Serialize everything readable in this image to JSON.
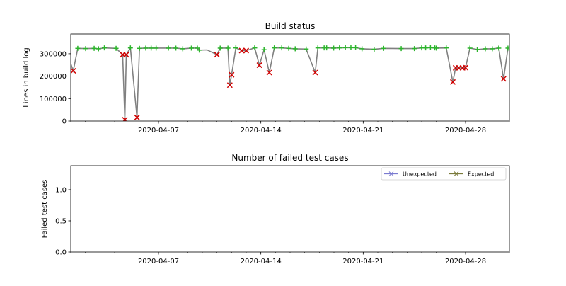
{
  "chart_data": [
    {
      "type": "line",
      "title": "Build status",
      "xlabel": "",
      "ylabel": "Lines in build log",
      "x_origin_date": "2020-04-01",
      "x_unit": "days since x_origin_date",
      "xlim": [
        0,
        30
      ],
      "ylim": [
        0,
        388000
      ],
      "xticks": [
        {
          "day": 6,
          "label": "2020-04-07"
        },
        {
          "day": 13,
          "label": "2020-04-14"
        },
        {
          "day": 20,
          "label": "2020-04-21"
        },
        {
          "day": 27,
          "label": "2020-04-28"
        }
      ],
      "yticks": [
        {
          "value": 0,
          "label": "0"
        },
        {
          "value": 100000,
          "label": "100000"
        },
        {
          "value": 200000,
          "label": "200000"
        },
        {
          "value": 300000,
          "label": "300000"
        }
      ],
      "colors": {
        "line": "#808080",
        "pass": "#2cb52c",
        "fail": "#d00000"
      },
      "points": [
        [
          -0.1,
          275000,
          "none"
        ],
        [
          0.17,
          224000,
          "fail"
        ],
        [
          0.48,
          324000,
          "pass"
        ],
        [
          1.02,
          323000,
          "pass"
        ],
        [
          1.6,
          324000,
          "pass"
        ],
        [
          1.9,
          322000,
          "pass"
        ],
        [
          2.3,
          326000,
          "pass"
        ],
        [
          3.1,
          324000,
          "pass"
        ],
        [
          3.55,
          296000,
          "fail"
        ],
        [
          3.7,
          6000,
          "fail"
        ],
        [
          3.8,
          296000,
          "fail"
        ],
        [
          4.08,
          326000,
          "pass"
        ],
        [
          4.53,
          16000,
          "fail"
        ],
        [
          4.7,
          324000,
          "pass"
        ],
        [
          5.13,
          325000,
          "pass"
        ],
        [
          5.5,
          325000,
          "pass"
        ],
        [
          5.84,
          325000,
          "pass"
        ],
        [
          6.68,
          325000,
          "pass"
        ],
        [
          7.19,
          325000,
          "pass"
        ],
        [
          7.66,
          322000,
          "pass"
        ],
        [
          8.25,
          325000,
          "pass"
        ],
        [
          8.66,
          325000,
          "pass"
        ],
        [
          8.79,
          316000,
          "pass"
        ],
        [
          9.33,
          317000,
          "none"
        ],
        [
          10.0,
          296000,
          "fail"
        ],
        [
          10.22,
          325000,
          "pass"
        ],
        [
          10.75,
          325000,
          "pass"
        ],
        [
          10.88,
          160000,
          "fail"
        ],
        [
          11.0,
          206000,
          "fail"
        ],
        [
          11.29,
          326000,
          "pass"
        ],
        [
          11.69,
          314000,
          "fail"
        ],
        [
          12.0,
          314000,
          "fail"
        ],
        [
          12.58,
          326000,
          "pass"
        ],
        [
          12.9,
          249000,
          "fail"
        ],
        [
          13.22,
          318000,
          "pass"
        ],
        [
          13.58,
          216000,
          "fail"
        ],
        [
          13.92,
          326000,
          "pass"
        ],
        [
          14.43,
          326000,
          "pass"
        ],
        [
          14.91,
          324000,
          "pass"
        ],
        [
          15.35,
          322000,
          "pass"
        ],
        [
          16.1,
          321000,
          "pass"
        ],
        [
          16.72,
          216000,
          "fail"
        ],
        [
          16.9,
          326000,
          "pass"
        ],
        [
          17.33,
          326000,
          "pass"
        ],
        [
          17.5,
          326000,
          "pass"
        ],
        [
          17.98,
          325000,
          "pass"
        ],
        [
          18.38,
          326000,
          "pass"
        ],
        [
          18.78,
          327000,
          "pass"
        ],
        [
          19.16,
          327000,
          "pass"
        ],
        [
          19.48,
          327000,
          "pass"
        ],
        [
          19.92,
          322000,
          "pass"
        ],
        [
          20.75,
          320000,
          "pass"
        ],
        [
          21.4,
          324000,
          "pass"
        ],
        [
          22.6,
          323000,
          "pass"
        ],
        [
          23.5,
          323000,
          "pass"
        ],
        [
          24.0,
          326000,
          "pass"
        ],
        [
          24.27,
          326000,
          "pass"
        ],
        [
          24.6,
          327000,
          "pass"
        ],
        [
          24.9,
          326000,
          "pass"
        ],
        [
          25.0,
          325000,
          "pass"
        ],
        [
          25.68,
          326000,
          "pass"
        ],
        [
          26.13,
          174000,
          "fail"
        ],
        [
          26.32,
          237000,
          "fail"
        ],
        [
          26.53,
          237000,
          "fail"
        ],
        [
          26.8,
          237000,
          "fail"
        ],
        [
          27.0,
          238000,
          "fail"
        ],
        [
          27.3,
          325000,
          "pass"
        ],
        [
          27.8,
          319000,
          "pass"
        ],
        [
          28.35,
          322000,
          "pass"
        ],
        [
          28.83,
          322000,
          "pass"
        ],
        [
          29.27,
          325000,
          "pass"
        ],
        [
          29.6,
          188000,
          "fail"
        ],
        [
          29.9,
          325000,
          "pass"
        ]
      ]
    },
    {
      "type": "line",
      "title": "Number of failed test cases",
      "xlabel": "",
      "ylabel": "Failed test cases",
      "xlim": [
        0,
        30
      ],
      "ylim": [
        0,
        1.386
      ],
      "xticks": [
        {
          "day": 6,
          "label": "2020-04-07"
        },
        {
          "day": 13,
          "label": "2020-04-14"
        },
        {
          "day": 20,
          "label": "2020-04-21"
        },
        {
          "day": 27,
          "label": "2020-04-28"
        }
      ],
      "yticks": [
        {
          "value": 0,
          "label": "0.0"
        },
        {
          "value": 0.5,
          "label": "0.5"
        },
        {
          "value": 1.0,
          "label": "1.0"
        }
      ],
      "legend_position": "top-right",
      "series": [
        {
          "name": "Unexpected",
          "color": "#7b7bd0",
          "values": []
        },
        {
          "name": "Expected",
          "color": "#7a7a3a",
          "values": []
        }
      ]
    }
  ]
}
